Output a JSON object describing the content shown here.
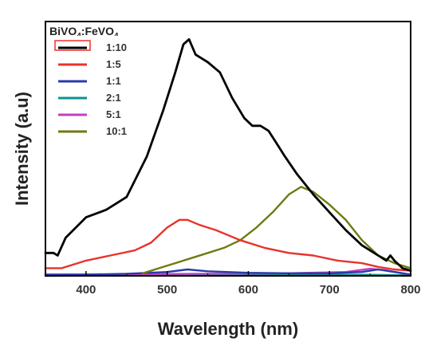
{
  "chart_data": {
    "type": "line",
    "title": "",
    "annotation": {
      "base": "BiVO",
      "sub1": "4",
      "mid": ":FeVO",
      "sub2": "4"
    },
    "xlabel": "Wavelength (nm)",
    "ylabel": "Intensity (a.u)",
    "xlim": [
      350,
      800
    ],
    "ylim": [
      0,
      10
    ],
    "xticks": [
      400,
      500,
      600,
      700,
      800
    ],
    "yticks_shown": false,
    "grid": false,
    "legend_position": "top-left",
    "series": [
      {
        "name": "1:10",
        "color": "#000000",
        "x": [
          350,
          360,
          365,
          375,
          400,
          425,
          450,
          475,
          495,
          510,
          520,
          527,
          535,
          550,
          565,
          580,
          595,
          605,
          615,
          625,
          635,
          645,
          660,
          680,
          700,
          720,
          740,
          760,
          770,
          775,
          780,
          790,
          800
        ],
        "y": [
          0.9,
          0.9,
          0.8,
          1.5,
          2.3,
          2.6,
          3.1,
          4.7,
          6.5,
          8.0,
          9.1,
          9.3,
          8.7,
          8.4,
          8.0,
          7.0,
          6.2,
          5.9,
          5.9,
          5.7,
          5.2,
          4.7,
          4.0,
          3.2,
          2.5,
          1.8,
          1.2,
          0.8,
          0.6,
          0.8,
          0.6,
          0.3,
          0.2
        ]
      },
      {
        "name": "1:5",
        "color": "#e8332b",
        "x": [
          350,
          370,
          400,
          430,
          460,
          480,
          500,
          515,
          525,
          540,
          560,
          590,
          620,
          650,
          680,
          710,
          740,
          760,
          780,
          800
        ],
        "y": [
          0.3,
          0.3,
          0.6,
          0.8,
          1.0,
          1.3,
          1.9,
          2.2,
          2.2,
          2.0,
          1.8,
          1.4,
          1.1,
          0.9,
          0.8,
          0.6,
          0.5,
          0.35,
          0.25,
          0.2
        ]
      },
      {
        "name": "1:1",
        "color": "#2b3aa8",
        "x": [
          350,
          400,
          450,
          500,
          525,
          550,
          600,
          650,
          700,
          740,
          760,
          780,
          800
        ],
        "y": [
          0.05,
          0.05,
          0.08,
          0.15,
          0.25,
          0.18,
          0.12,
          0.1,
          0.1,
          0.15,
          0.25,
          0.15,
          0.05
        ]
      },
      {
        "name": "2:1",
        "color": "#0f9090",
        "x": [
          350,
          450,
          550,
          650,
          750,
          800
        ],
        "y": [
          0.0,
          0.02,
          0.04,
          0.05,
          0.04,
          0.02
        ]
      },
      {
        "name": "5:1",
        "color": "#c040c0",
        "x": [
          350,
          450,
          550,
          650,
          720,
          750,
          770,
          790,
          800
        ],
        "y": [
          0.05,
          0.06,
          0.08,
          0.1,
          0.15,
          0.28,
          0.22,
          0.1,
          0.05
        ]
      },
      {
        "name": "10:1",
        "color": "#707a10",
        "x": [
          470,
          490,
          510,
          530,
          550,
          570,
          590,
          610,
          630,
          650,
          665,
          680,
          700,
          720,
          740,
          760,
          780,
          800
        ],
        "y": [
          0.1,
          0.3,
          0.5,
          0.7,
          0.9,
          1.1,
          1.4,
          1.9,
          2.5,
          3.2,
          3.5,
          3.3,
          2.8,
          2.2,
          1.4,
          0.8,
          0.5,
          0.3
        ]
      }
    ]
  }
}
